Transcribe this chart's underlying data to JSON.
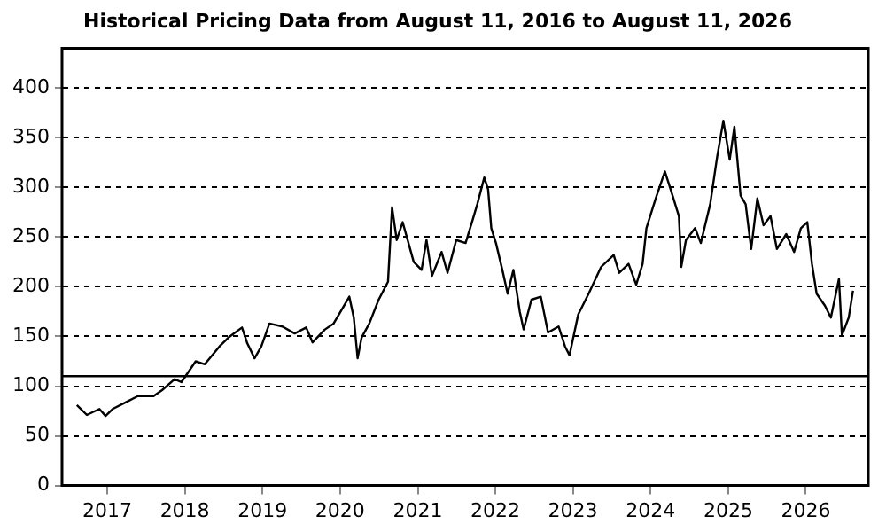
{
  "chart_data": {
    "type": "line",
    "title": "Historical Pricing Data from August 11, 2016 to August 11, 2026",
    "x": [
      "2016-08-11",
      "2016-09-27",
      "2016-11-25",
      "2016-12-24",
      "2017-01-26",
      "2017-04-01",
      "2017-05-25",
      "2017-08-07",
      "2017-09-16",
      "2017-11-14",
      "2017-12-16",
      "2018-02-21",
      "2018-04-05",
      "2018-06-13",
      "2018-07-26",
      "2018-09-27",
      "2018-10-22",
      "2018-11-25",
      "2018-12-27",
      "2019-02-03",
      "2019-04-05",
      "2019-06-02",
      "2019-07-26",
      "2019-08-25",
      "2019-10-22",
      "2019-12-02",
      "2020-01-01",
      "2020-02-14",
      "2020-03-06",
      "2020-03-24",
      "2020-04-12",
      "2020-05-18",
      "2020-07-01",
      "2020-08-14",
      "2020-09-02",
      "2020-09-24",
      "2020-10-22",
      "2020-12-13",
      "2021-01-19",
      "2021-02-11",
      "2021-03-09",
      "2021-04-23",
      "2021-05-21",
      "2021-07-01",
      "2021-08-14",
      "2021-09-13",
      "2021-10-08",
      "2021-11-10",
      "2021-11-28",
      "2021-12-13",
      "2022-01-04",
      "2022-02-03",
      "2022-02-28",
      "2022-03-27",
      "2022-04-26",
      "2022-05-14",
      "2022-06-20",
      "2022-08-03",
      "2022-09-06",
      "2022-10-26",
      "2022-11-25",
      "2022-12-16",
      "2023-01-26",
      "2023-03-16",
      "2023-05-14",
      "2023-07-12",
      "2023-08-07",
      "2023-09-20",
      "2023-10-26",
      "2023-11-25",
      "2023-12-13",
      "2024-01-26",
      "2024-03-09",
      "2024-04-05",
      "2024-05-14",
      "2024-05-25",
      "2024-06-16",
      "2024-07-29",
      "2024-08-25",
      "2024-10-08",
      "2024-11-10",
      "2024-12-09",
      "2025-01-08",
      "2025-01-30",
      "2025-02-28",
      "2025-03-24",
      "2025-04-19",
      "2025-05-18",
      "2025-06-16",
      "2025-07-19",
      "2025-08-18",
      "2025-10-01",
      "2025-11-07",
      "2025-12-09",
      "2026-01-08",
      "2026-01-30",
      "2026-02-21",
      "2026-04-01",
      "2026-04-29",
      "2026-06-06",
      "2026-06-20",
      "2026-07-22",
      "2026-08-11"
    ],
    "series": [
      {
        "color": "#000000",
        "values": [
          81,
          71,
          77,
          70,
          77,
          84,
          90,
          90,
          96,
          107,
          104,
          125,
          122,
          140,
          149,
          159,
          143,
          128,
          140,
          163,
          160,
          153,
          159,
          144,
          157,
          163,
          174,
          190,
          169,
          128,
          149,
          163,
          187,
          205,
          280,
          247,
          265,
          225,
          217,
          247,
          211,
          235,
          214,
          247,
          244,
          265,
          283,
          310,
          298,
          259,
          244,
          217,
          193,
          217,
          175,
          157,
          187,
          190,
          154,
          160,
          140,
          131,
          172,
          193,
          220,
          232,
          214,
          223,
          202,
          223,
          259,
          289,
          316,
          298,
          271,
          220,
          247,
          259,
          244,
          283,
          331,
          367,
          328,
          361,
          292,
          283,
          238,
          289,
          262,
          271,
          238,
          253,
          235,
          259,
          265,
          223,
          193,
          181,
          169,
          208,
          151,
          169,
          196
        ]
      }
    ],
    "xlim": [
      "2016-06-02",
      "2026-10-22"
    ],
    "xticks": [
      {
        "value": "2017-01-01",
        "label": "2017"
      },
      {
        "value": "2018-01-01",
        "label": "2018"
      },
      {
        "value": "2019-01-01",
        "label": "2019"
      },
      {
        "value": "2020-01-01",
        "label": "2020"
      },
      {
        "value": "2021-01-01",
        "label": "2021"
      },
      {
        "value": "2022-01-01",
        "label": "2022"
      },
      {
        "value": "2023-01-01",
        "label": "2023"
      },
      {
        "value": "2024-01-01",
        "label": "2024"
      },
      {
        "value": "2025-01-01",
        "label": "2025"
      },
      {
        "value": "2026-01-01",
        "label": "2026"
      }
    ],
    "ylim": [
      0,
      440
    ],
    "yticks": [
      0,
      50,
      100,
      150,
      200,
      250,
      300,
      350,
      400
    ],
    "ref_lines": [
      {
        "axis": "y",
        "value": 110,
        "color": "#000000",
        "line_style": "solid"
      }
    ],
    "grid": "y",
    "legend": false,
    "marker": "none",
    "line_style": "solid"
  }
}
